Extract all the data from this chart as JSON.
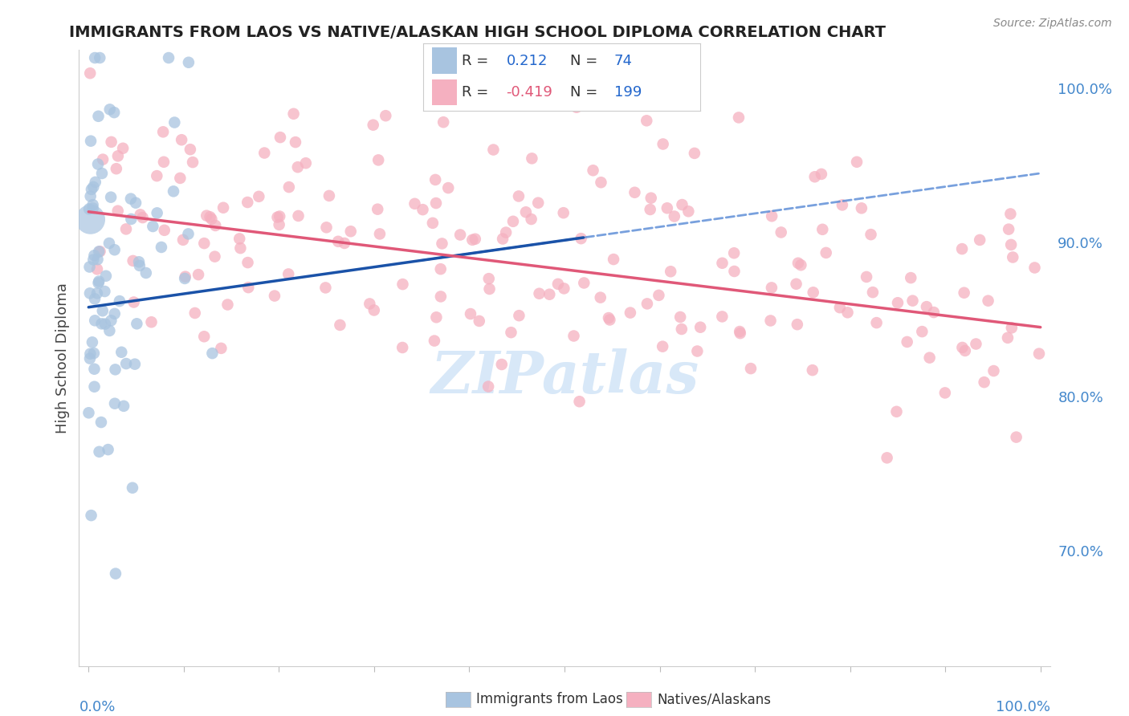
{
  "title": "IMMIGRANTS FROM LAOS VS NATIVE/ALASKAN HIGH SCHOOL DIPLOMA CORRELATION CHART",
  "source": "Source: ZipAtlas.com",
  "ylabel": "High School Diploma",
  "right_yticks": [
    0.7,
    0.8,
    0.9,
    1.0
  ],
  "right_yticklabels": [
    "70.0%",
    "80.0%",
    "90.0%",
    "100.0%"
  ],
  "xlim": [
    -0.01,
    1.01
  ],
  "ylim": [
    0.625,
    1.025
  ],
  "blue_color": "#a8c4e0",
  "blue_line_color": "#1a52a8",
  "pink_color": "#f5b0c0",
  "pink_line_color": "#e05878",
  "dashed_line_color": "#6090d8",
  "background_color": "#ffffff",
  "grid_color": "#cccccc",
  "title_color": "#222222",
  "source_color": "#888888",
  "axis_label_color": "#4488cc",
  "legend_r_color_blue": "#2266cc",
  "legend_r_color_pink": "#e05878",
  "legend_n_color": "#2266cc",
  "watermark_color": "#d8e8f8",
  "n_blue": 74,
  "n_pink": 199,
  "r_blue": 0.212,
  "r_pink": -0.419
}
